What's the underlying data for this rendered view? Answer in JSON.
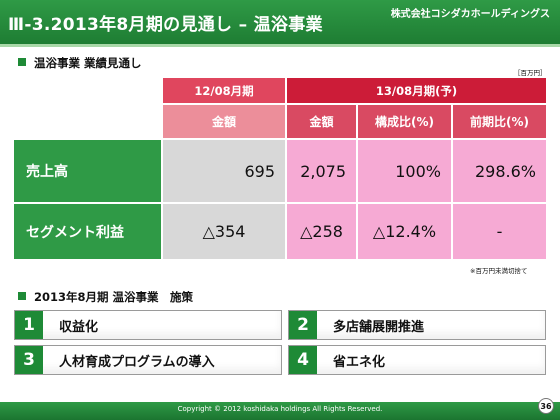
{
  "header": {
    "title": "Ⅲ-3.2013年8月期の見通し – 温浴事業",
    "company": "株式会社コシダカホールディングス"
  },
  "section1": {
    "title": "温浴事業 業績見通し",
    "unit": "［百万円］"
  },
  "table": {
    "period_prev": "12/08月期",
    "period_next": "13/08月期(予)",
    "sub_amount_prev": "金額",
    "sub_amount_next": "金額",
    "sub_ratio": "構成比(%)",
    "sub_yoy": "前期比(%)",
    "rows": [
      {
        "label": "売上高",
        "prev": "695",
        "next": "2,075",
        "ratio": "100%",
        "yoy": "298.6%"
      },
      {
        "label": "セグメント利益",
        "prev": "△354",
        "next": "△258",
        "ratio": "△12.4%",
        "yoy": "-"
      }
    ],
    "footnote": "※百万円未満切捨て"
  },
  "section2": {
    "title": "2013年8月期 温浴事業　施策",
    "measures": [
      {
        "num": "1",
        "label": "収益化"
      },
      {
        "num": "2",
        "label": "多店舗展開推進"
      },
      {
        "num": "3",
        "label": "人材育成プログラムの導入"
      },
      {
        "num": "4",
        "label": "省エネ化"
      }
    ]
  },
  "footer": {
    "copyright": "Copyright © 2012 koshidaka holdings All Rights Reserved.",
    "page": "36"
  }
}
